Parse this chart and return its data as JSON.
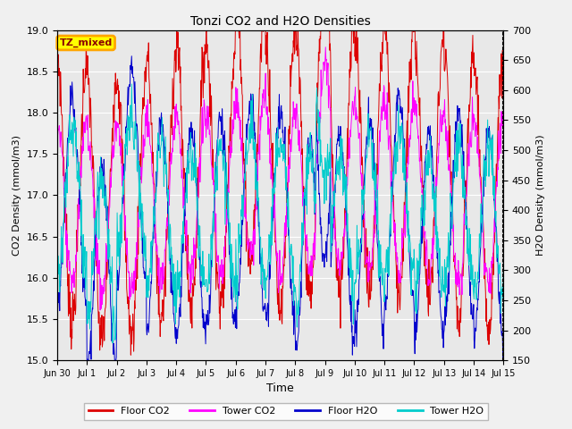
{
  "title": "Tonzi CO2 and H2O Densities",
  "xlabel": "Time",
  "ylabel_left": "CO2 Density (mmol/m3)",
  "ylabel_right": "H2O Density (mmol/m3)",
  "ylim_left": [
    15.0,
    19.0
  ],
  "ylim_right": [
    150,
    700
  ],
  "annotation_text": "TZ_mixed",
  "annotation_color_text": "darkred",
  "annotation_color_bg": "yellow",
  "annotation_color_border": "orange",
  "colors": {
    "floor_co2": "#dd0000",
    "tower_co2": "#ff00ff",
    "floor_h2o": "#0000cc",
    "tower_h2o": "#00cccc"
  },
  "legend_labels": [
    "Floor CO2",
    "Tower CO2",
    "Floor H2O",
    "Tower H2O"
  ],
  "xtick_labels": [
    "Jun 30",
    "Jul 1",
    "Jul 2",
    "Jul 3",
    "Jul 4",
    "Jul 5",
    "Jul 6",
    "Jul 7",
    "Jul 8",
    "Jul 9",
    "Jul 10",
    "Jul 11",
    "Jul 12",
    "Jul 13",
    "Jul 14",
    "Jul 15"
  ],
  "background_color": "#f0f0f0",
  "plot_bg_color": "#e8e8e8",
  "grid_color": "white",
  "yticks_left": [
    15.0,
    15.5,
    16.0,
    16.5,
    17.0,
    17.5,
    18.0,
    18.5,
    19.0
  ],
  "yticks_right": [
    150,
    200,
    250,
    300,
    350,
    400,
    450,
    500,
    550,
    600,
    650,
    700
  ]
}
